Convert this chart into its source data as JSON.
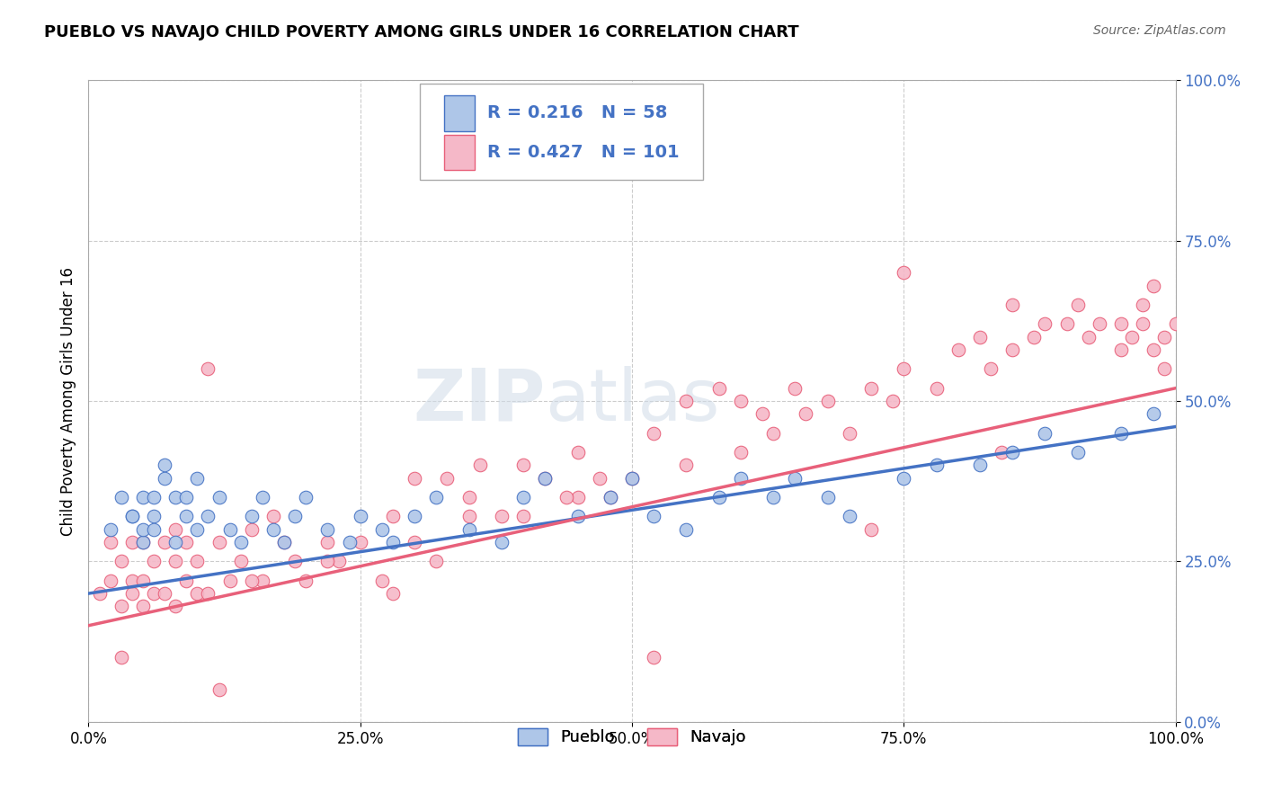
{
  "title": "PUEBLO VS NAVAJO CHILD POVERTY AMONG GIRLS UNDER 16 CORRELATION CHART",
  "source": "Source: ZipAtlas.com",
  "ylabel": "Child Poverty Among Girls Under 16",
  "xlim": [
    0,
    1
  ],
  "ylim": [
    0,
    1
  ],
  "xticks": [
    0.0,
    0.25,
    0.5,
    0.75,
    1.0
  ],
  "yticks": [
    0.0,
    0.25,
    0.5,
    0.75,
    1.0
  ],
  "pueblo_color": "#aec6e8",
  "navajo_color": "#f5b8c8",
  "pueblo_edge_color": "#4472c4",
  "navajo_edge_color": "#e8607a",
  "pueblo_line_color": "#4472c4",
  "navajo_line_color": "#e8607a",
  "legend_text_color": "#4472c4",
  "pueblo_R": 0.216,
  "pueblo_N": 58,
  "navajo_R": 0.427,
  "navajo_N": 101,
  "watermark_zip": "ZIP",
  "watermark_atlas": "atlas",
  "background_color": "#ffffff",
  "grid_color": "#cccccc",
  "pueblo_slope": 0.26,
  "pueblo_intercept": 0.2,
  "navajo_slope": 0.37,
  "navajo_intercept": 0.15,
  "pueblo_x": [
    0.02,
    0.03,
    0.04,
    0.04,
    0.05,
    0.05,
    0.05,
    0.06,
    0.06,
    0.06,
    0.07,
    0.07,
    0.08,
    0.08,
    0.09,
    0.09,
    0.1,
    0.1,
    0.11,
    0.12,
    0.13,
    0.14,
    0.15,
    0.16,
    0.17,
    0.18,
    0.19,
    0.2,
    0.22,
    0.24,
    0.25,
    0.27,
    0.28,
    0.3,
    0.32,
    0.35,
    0.38,
    0.4,
    0.42,
    0.45,
    0.48,
    0.5,
    0.52,
    0.55,
    0.58,
    0.6,
    0.63,
    0.65,
    0.68,
    0.7,
    0.75,
    0.78,
    0.82,
    0.85,
    0.88,
    0.91,
    0.95,
    0.98
  ],
  "pueblo_y": [
    0.3,
    0.35,
    0.32,
    0.32,
    0.28,
    0.35,
    0.3,
    0.32,
    0.35,
    0.3,
    0.38,
    0.4,
    0.35,
    0.28,
    0.32,
    0.35,
    0.38,
    0.3,
    0.32,
    0.35,
    0.3,
    0.28,
    0.32,
    0.35,
    0.3,
    0.28,
    0.32,
    0.35,
    0.3,
    0.28,
    0.32,
    0.3,
    0.28,
    0.32,
    0.35,
    0.3,
    0.28,
    0.35,
    0.38,
    0.32,
    0.35,
    0.38,
    0.32,
    0.3,
    0.35,
    0.38,
    0.35,
    0.38,
    0.35,
    0.32,
    0.38,
    0.4,
    0.4,
    0.42,
    0.45,
    0.42,
    0.45,
    0.48
  ],
  "navajo_x": [
    0.01,
    0.02,
    0.02,
    0.03,
    0.03,
    0.04,
    0.04,
    0.04,
    0.05,
    0.05,
    0.05,
    0.06,
    0.06,
    0.07,
    0.07,
    0.08,
    0.08,
    0.08,
    0.09,
    0.09,
    0.1,
    0.1,
    0.11,
    0.11,
    0.12,
    0.13,
    0.14,
    0.15,
    0.16,
    0.17,
    0.18,
    0.19,
    0.2,
    0.22,
    0.23,
    0.25,
    0.27,
    0.28,
    0.3,
    0.3,
    0.32,
    0.33,
    0.35,
    0.36,
    0.38,
    0.4,
    0.4,
    0.42,
    0.45,
    0.45,
    0.47,
    0.48,
    0.5,
    0.52,
    0.55,
    0.55,
    0.58,
    0.6,
    0.62,
    0.63,
    0.65,
    0.66,
    0.68,
    0.7,
    0.72,
    0.74,
    0.75,
    0.75,
    0.78,
    0.8,
    0.82,
    0.83,
    0.85,
    0.85,
    0.87,
    0.88,
    0.9,
    0.91,
    0.92,
    0.93,
    0.95,
    0.95,
    0.96,
    0.97,
    0.97,
    0.98,
    0.98,
    0.99,
    0.99,
    1.0,
    0.03,
    0.12,
    0.15,
    0.22,
    0.28,
    0.35,
    0.44,
    0.52,
    0.6,
    0.72,
    0.84
  ],
  "navajo_y": [
    0.2,
    0.22,
    0.28,
    0.18,
    0.25,
    0.2,
    0.28,
    0.22,
    0.18,
    0.22,
    0.28,
    0.2,
    0.25,
    0.2,
    0.28,
    0.18,
    0.25,
    0.3,
    0.22,
    0.28,
    0.2,
    0.25,
    0.2,
    0.55,
    0.28,
    0.22,
    0.25,
    0.3,
    0.22,
    0.32,
    0.28,
    0.25,
    0.22,
    0.28,
    0.25,
    0.28,
    0.22,
    0.32,
    0.28,
    0.38,
    0.25,
    0.38,
    0.35,
    0.4,
    0.32,
    0.4,
    0.32,
    0.38,
    0.35,
    0.42,
    0.38,
    0.35,
    0.38,
    0.45,
    0.4,
    0.5,
    0.52,
    0.5,
    0.48,
    0.45,
    0.52,
    0.48,
    0.5,
    0.45,
    0.52,
    0.5,
    0.7,
    0.55,
    0.52,
    0.58,
    0.6,
    0.55,
    0.58,
    0.65,
    0.6,
    0.62,
    0.62,
    0.65,
    0.6,
    0.62,
    0.58,
    0.62,
    0.6,
    0.62,
    0.65,
    0.58,
    0.68,
    0.55,
    0.6,
    0.62,
    0.1,
    0.05,
    0.22,
    0.25,
    0.2,
    0.32,
    0.35,
    0.1,
    0.42,
    0.3,
    0.42
  ]
}
